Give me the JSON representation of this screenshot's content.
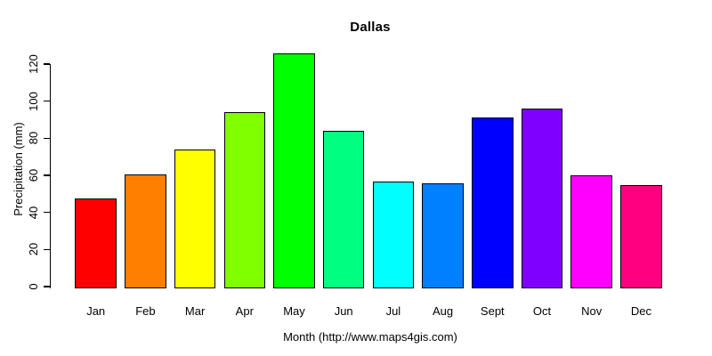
{
  "chart_data": {
    "type": "bar",
    "title": "Dallas",
    "xlabel": "Month (http://www.maps4gis.com)",
    "ylabel": "Precipitation (mm)",
    "categories": [
      "Jan",
      "Feb",
      "Mar",
      "Apr",
      "May",
      "Jun",
      "Jul",
      "Aug",
      "Sept",
      "Oct",
      "Nov",
      "Dec"
    ],
    "values": [
      47.5,
      60.5,
      74,
      94,
      126,
      84,
      56.5,
      55.5,
      91,
      96,
      60,
      54.5
    ],
    "bar_colors": [
      "#FF0000",
      "#FF8000",
      "#FFFF00",
      "#80FF00",
      "#00FF00",
      "#00FF80",
      "#00FFFF",
      "#0080FF",
      "#0000FF",
      "#8000FF",
      "#FF00FF",
      "#FF0080"
    ],
    "bar_border_color": "#000000",
    "y_ticks": [
      0,
      20,
      40,
      60,
      80,
      100,
      120
    ],
    "ylim": [
      0,
      130
    ],
    "grid": false,
    "legend": "none",
    "background_color": "#FFFFFF",
    "text_color": "#000000"
  }
}
